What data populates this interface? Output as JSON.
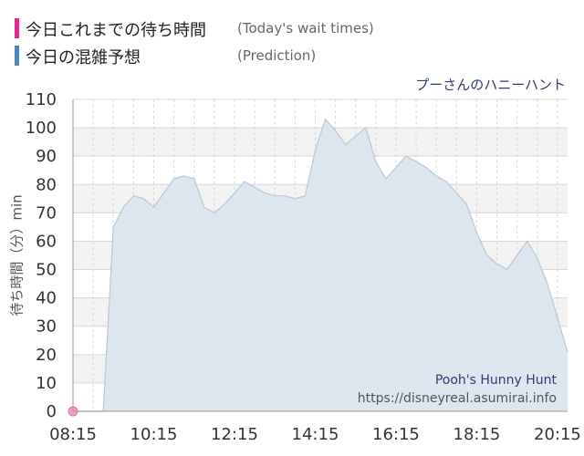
{
  "legend": {
    "today_label": "今日これまでの待ち時間",
    "today_label_en": "(Today's wait times)",
    "prediction_label": "今日の混雑予想",
    "prediction_label_en": "(Prediction)",
    "today_color": "#e8278f",
    "prediction_color": "#4a86b8"
  },
  "attraction_name": "プーさんのハニーハント",
  "watermark": {
    "name": "Pooh's Hunny Hunt",
    "url": "https://disneyreal.asumirai.info"
  },
  "chart_data": {
    "type": "area",
    "ylabel": "待ち時間（分）min",
    "ylim": [
      0,
      110
    ],
    "yticks": [
      0,
      10,
      20,
      30,
      40,
      50,
      60,
      70,
      80,
      90,
      100,
      110
    ],
    "xticks": [
      "08:15",
      "10:15",
      "12:15",
      "14:15",
      "16:15",
      "18:15",
      "20:15"
    ],
    "grid": true,
    "fill_color": "#dce6ee",
    "line_color": "#b7c8d6",
    "series": [
      {
        "name": "今日の混雑予想",
        "x": [
          "08:15",
          "08:30",
          "08:45",
          "09:00",
          "09:15",
          "09:30",
          "09:45",
          "10:00",
          "10:15",
          "10:30",
          "10:45",
          "11:00",
          "11:15",
          "11:30",
          "11:45",
          "12:00",
          "12:15",
          "12:30",
          "12:45",
          "13:00",
          "13:15",
          "13:30",
          "13:45",
          "14:00",
          "14:15",
          "14:30",
          "14:45",
          "15:00",
          "15:15",
          "15:30",
          "15:45",
          "16:00",
          "16:15",
          "16:30",
          "16:45",
          "17:00",
          "17:15",
          "17:30",
          "17:45",
          "18:00",
          "18:15",
          "18:30",
          "18:45",
          "19:00",
          "19:15",
          "19:30",
          "19:45",
          "20:00",
          "20:15",
          "20:30"
        ],
        "values": [
          0,
          0,
          0,
          0,
          65,
          72,
          76,
          75,
          72,
          77,
          82,
          83,
          82,
          72,
          70,
          73,
          77,
          81,
          79,
          77,
          76,
          76,
          75,
          76,
          92,
          103,
          99,
          94,
          97,
          100,
          88,
          82,
          86,
          90,
          88,
          86,
          83,
          81,
          77,
          73,
          63,
          55,
          52,
          50,
          55,
          60,
          54,
          45,
          33,
          21
        ]
      },
      {
        "name": "今日これまでの待ち時間",
        "x": [
          "08:15"
        ],
        "values": [
          0
        ]
      }
    ]
  }
}
